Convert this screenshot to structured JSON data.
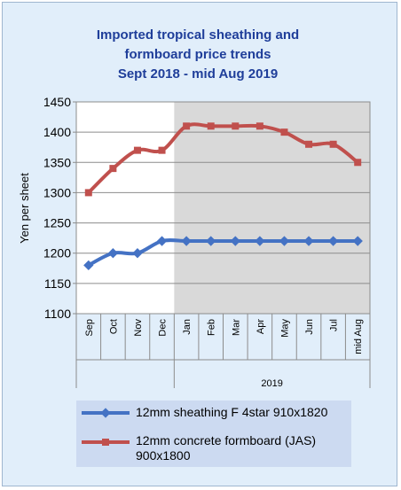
{
  "chart_data": {
    "type": "line",
    "title_lines": [
      "Imported tropical sheathing and",
      "formboard price trends",
      "Sept 2018 - mid Aug 2019"
    ],
    "ylabel": "Yen per sheet",
    "ylim": [
      1100,
      1450
    ],
    "yticks": [
      1100,
      1150,
      1200,
      1250,
      1300,
      1350,
      1400,
      1450
    ],
    "categories": [
      "Sep",
      "Oct",
      "Nov",
      "Dec",
      "Jan",
      "Feb",
      "Mar",
      "Apr",
      "May",
      "Jun",
      "Jul",
      "mid Aug"
    ],
    "year_groups": [
      {
        "label": "",
        "count": 4
      },
      {
        "label": "2019",
        "count": 8
      }
    ],
    "shaded_region": "Jan to mid Aug",
    "grid": true,
    "legend_placement": "bottom",
    "series": [
      {
        "name": "12mm sheathing F 4star 910x1820",
        "color": "#4472c4",
        "marker": "diamond",
        "values": [
          1180,
          1200,
          1200,
          1220,
          1220,
          1220,
          1220,
          1220,
          1220,
          1220,
          1220,
          1220
        ]
      },
      {
        "name": "12mm concrete formboard (JAS) 900x1800",
        "color": "#c0504d",
        "marker": "square",
        "values": [
          1300,
          1340,
          1370,
          1370,
          1410,
          1410,
          1410,
          1410,
          1400,
          1380,
          1380,
          1350
        ]
      }
    ]
  }
}
